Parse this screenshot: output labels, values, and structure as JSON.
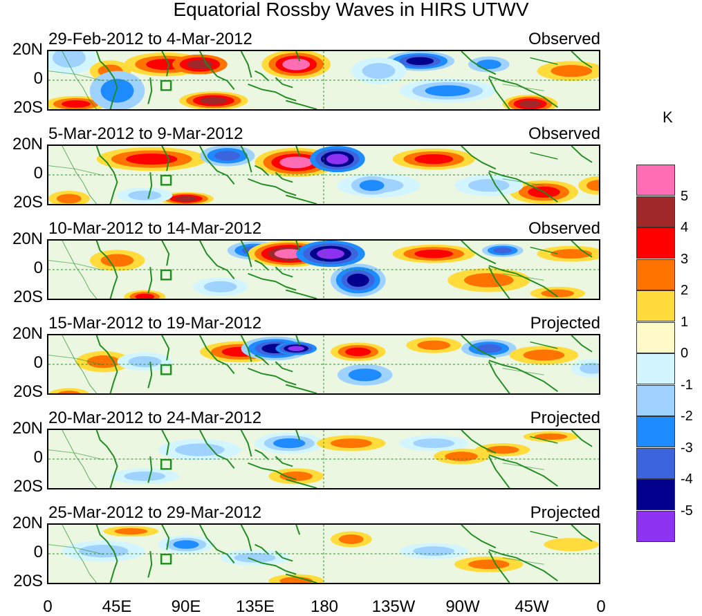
{
  "figure": {
    "title": "Equatorial Rossby Waves in HIRS UTWV",
    "y_axis_labels": [
      "20N",
      "0",
      "20S"
    ],
    "x_axis_labels": [
      "0",
      "45E",
      "90E",
      "135E",
      "180",
      "135W",
      "90W",
      "45W",
      "0"
    ]
  },
  "panels": [
    {
      "date_range": "29-Feb-2012 to 4-Mar-2012",
      "status": "Observed"
    },
    {
      "date_range": "5-Mar-2012 to 9-Mar-2012",
      "status": "Observed"
    },
    {
      "date_range": "10-Mar-2012 to 14-Mar-2012",
      "status": "Observed"
    },
    {
      "date_range": "15-Mar-2012 to 19-Mar-2012",
      "status": "Projected"
    },
    {
      "date_range": "20-Mar-2012 to 24-Mar-2012",
      "status": "Projected"
    },
    {
      "date_range": "25-Mar-2012 to 29-Mar-2012",
      "status": "Projected"
    }
  ],
  "colorbar": {
    "unit": "K",
    "tick_labels": [
      "5",
      "4",
      "3",
      "2",
      "1",
      "0",
      "-1",
      "-2",
      "-3",
      "-4",
      "-5"
    ],
    "colors": [
      "#ff6eb4",
      "#a02828",
      "#ff0000",
      "#ff7400",
      "#ffdc3c",
      "#fffac8",
      "#d2f5ff",
      "#a0d2ff",
      "#1e8cff",
      "#3c64dc",
      "#00008c",
      "#8c32f0"
    ]
  },
  "map_colors": {
    "coast": "#1e8c1e",
    "equator_line": "#2a8a2a"
  }
}
